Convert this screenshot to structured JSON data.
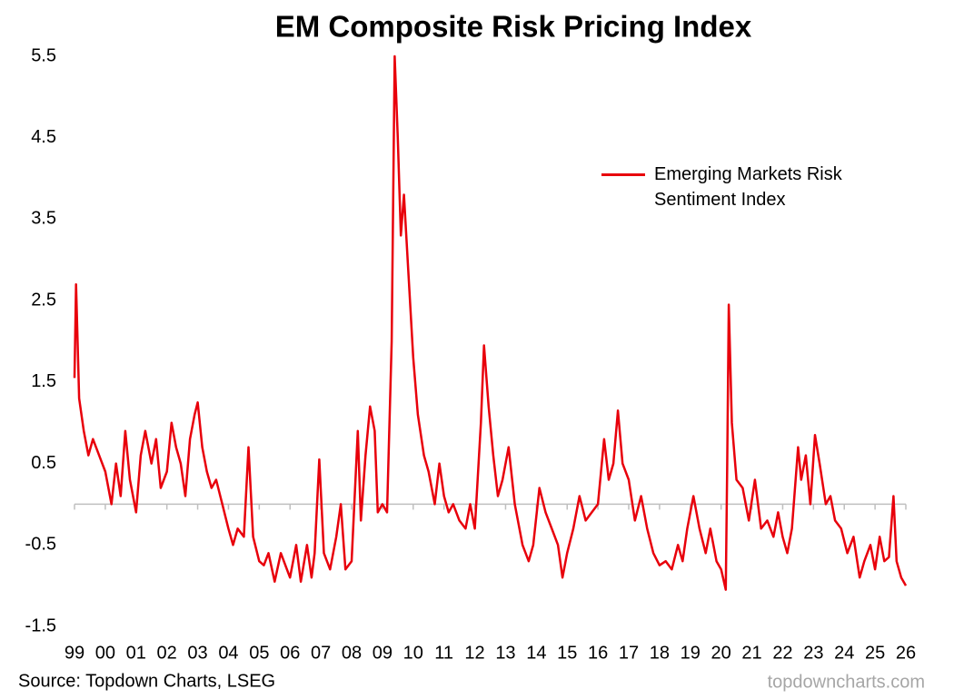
{
  "chart_data": {
    "type": "line",
    "title": "EM Composite Risk Pricing Index",
    "source": "Source: Topdown Charts, LSEG",
    "watermark": "topdowncharts.com",
    "xlim": [
      1999,
      2026
    ],
    "xticks": [
      {
        "value": 1999,
        "label": "99"
      },
      {
        "value": 2000,
        "label": "00"
      },
      {
        "value": 2001,
        "label": "01"
      },
      {
        "value": 2002,
        "label": "02"
      },
      {
        "value": 2003,
        "label": "03"
      },
      {
        "value": 2004,
        "label": "04"
      },
      {
        "value": 2005,
        "label": "05"
      },
      {
        "value": 2006,
        "label": "06"
      },
      {
        "value": 2007,
        "label": "07"
      },
      {
        "value": 2008,
        "label": "08"
      },
      {
        "value": 2009,
        "label": "09"
      },
      {
        "value": 2010,
        "label": "10"
      },
      {
        "value": 2011,
        "label": "11"
      },
      {
        "value": 2012,
        "label": "12"
      },
      {
        "value": 2013,
        "label": "13"
      },
      {
        "value": 2014,
        "label": "14"
      },
      {
        "value": 2015,
        "label": "15"
      },
      {
        "value": 2016,
        "label": "16"
      },
      {
        "value": 2017,
        "label": "17"
      },
      {
        "value": 2018,
        "label": "18"
      },
      {
        "value": 2019,
        "label": "19"
      },
      {
        "value": 2020,
        "label": "20"
      },
      {
        "value": 2021,
        "label": "21"
      },
      {
        "value": 2022,
        "label": "22"
      },
      {
        "value": 2023,
        "label": "23"
      },
      {
        "value": 2024,
        "label": "24"
      },
      {
        "value": 2025,
        "label": "25"
      },
      {
        "value": 2026,
        "label": "26"
      }
    ],
    "ylim": [
      -1.5,
      5.5
    ],
    "yticks": [
      5.5,
      4.5,
      3.5,
      2.5,
      1.5,
      0.5,
      -0.5,
      -1.5
    ],
    "x": [
      1999.0,
      1999.05,
      1999.15,
      1999.3,
      1999.45,
      1999.6,
      1999.8,
      2000.0,
      2000.2,
      2000.35,
      2000.5,
      2000.65,
      2000.8,
      2001.0,
      2001.15,
      2001.3,
      2001.5,
      2001.65,
      2001.8,
      2002.0,
      2002.15,
      2002.3,
      2002.45,
      2002.6,
      2002.75,
      2002.9,
      2003.0,
      2003.15,
      2003.3,
      2003.45,
      2003.6,
      2003.8,
      2004.0,
      2004.15,
      2004.3,
      2004.5,
      2004.65,
      2004.8,
      2005.0,
      2005.15,
      2005.3,
      2005.5,
      2005.7,
      2005.9,
      2006.0,
      2006.2,
      2006.35,
      2006.55,
      2006.7,
      2006.8,
      2006.95,
      2007.1,
      2007.3,
      2007.5,
      2007.65,
      2007.8,
      2008.0,
      2008.2,
      2008.3,
      2008.45,
      2008.6,
      2008.75,
      2008.85,
      2009.0,
      2009.15,
      2009.3,
      2009.4,
      2009.5,
      2009.6,
      2009.7,
      2009.85,
      2010.0,
      2010.15,
      2010.35,
      2010.5,
      2010.7,
      2010.85,
      2011.0,
      2011.15,
      2011.3,
      2011.5,
      2011.7,
      2011.85,
      2012.0,
      2012.2,
      2012.3,
      2012.45,
      2012.6,
      2012.75,
      2012.9,
      2013.1,
      2013.3,
      2013.55,
      2013.75,
      2013.9,
      2014.1,
      2014.3,
      2014.5,
      2014.7,
      2014.85,
      2015.0,
      2015.2,
      2015.4,
      2015.6,
      2015.8,
      2016.0,
      2016.2,
      2016.35,
      2016.5,
      2016.65,
      2016.8,
      2017.0,
      2017.2,
      2017.4,
      2017.6,
      2017.8,
      2018.0,
      2018.2,
      2018.4,
      2018.6,
      2018.75,
      2018.9,
      2019.1,
      2019.3,
      2019.5,
      2019.65,
      2019.85,
      2020.0,
      2020.15,
      2020.2,
      2020.25,
      2020.35,
      2020.5,
      2020.7,
      2020.9,
      2021.1,
      2021.3,
      2021.5,
      2021.7,
      2021.85,
      2022.0,
      2022.15,
      2022.3,
      2022.5,
      2022.6,
      2022.75,
      2022.9,
      2023.05,
      2023.2,
      2023.4,
      2023.55,
      2023.7,
      2023.9,
      2024.1,
      2024.3,
      2024.5,
      2024.65,
      2024.85,
      2025.0,
      2025.15,
      2025.3,
      2025.45,
      2025.6,
      2025.7,
      2025.85,
      2026.0
    ],
    "series": [
      {
        "name": "Emerging Markets Risk Sentiment Index",
        "color": "#e8000b",
        "values": [
          1.55,
          2.7,
          1.3,
          0.9,
          0.6,
          0.8,
          0.6,
          0.4,
          0.0,
          0.5,
          0.1,
          0.9,
          0.3,
          -0.1,
          0.6,
          0.9,
          0.5,
          0.8,
          0.2,
          0.4,
          1.0,
          0.7,
          0.5,
          0.1,
          0.8,
          1.1,
          1.25,
          0.7,
          0.4,
          0.2,
          0.3,
          0.0,
          -0.3,
          -0.5,
          -0.3,
          -0.4,
          0.7,
          -0.4,
          -0.7,
          -0.75,
          -0.6,
          -0.95,
          -0.6,
          -0.8,
          -0.9,
          -0.5,
          -0.95,
          -0.5,
          -0.9,
          -0.6,
          0.55,
          -0.6,
          -0.8,
          -0.4,
          0.0,
          -0.8,
          -0.7,
          0.9,
          -0.2,
          0.6,
          1.2,
          0.9,
          -0.1,
          0.0,
          -0.1,
          2.0,
          5.5,
          4.5,
          3.3,
          3.8,
          2.8,
          1.8,
          1.1,
          0.6,
          0.4,
          0.0,
          0.5,
          0.1,
          -0.1,
          0.0,
          -0.2,
          -0.3,
          0.0,
          -0.3,
          1.0,
          1.95,
          1.2,
          0.6,
          0.1,
          0.3,
          0.7,
          0.0,
          -0.5,
          -0.7,
          -0.5,
          0.2,
          -0.1,
          -0.3,
          -0.5,
          -0.9,
          -0.6,
          -0.3,
          0.1,
          -0.2,
          -0.1,
          0.0,
          0.8,
          0.3,
          0.5,
          1.15,
          0.5,
          0.3,
          -0.2,
          0.1,
          -0.3,
          -0.6,
          -0.75,
          -0.7,
          -0.8,
          -0.5,
          -0.7,
          -0.3,
          0.1,
          -0.3,
          -0.6,
          -0.3,
          -0.7,
          -0.8,
          -1.05,
          0.5,
          2.45,
          1.0,
          0.3,
          0.2,
          -0.2,
          0.3,
          -0.3,
          -0.2,
          -0.4,
          -0.1,
          -0.4,
          -0.6,
          -0.3,
          0.7,
          0.3,
          0.6,
          0.0,
          0.85,
          0.5,
          0.0,
          0.1,
          -0.2,
          -0.3,
          -0.6,
          -0.4,
          -0.9,
          -0.7,
          -0.5,
          -0.8,
          -0.4,
          -0.7,
          -0.65,
          0.1,
          -0.7,
          -0.9,
          -1.0
        ]
      }
    ]
  }
}
